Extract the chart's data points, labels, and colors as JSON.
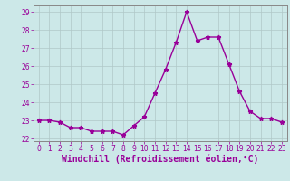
{
  "x": [
    0,
    1,
    2,
    3,
    4,
    5,
    6,
    7,
    8,
    9,
    10,
    11,
    12,
    13,
    14,
    15,
    16,
    17,
    18,
    19,
    20,
    21,
    22,
    23
  ],
  "y": [
    23.0,
    23.0,
    22.9,
    22.6,
    22.6,
    22.4,
    22.4,
    22.4,
    22.2,
    22.7,
    23.2,
    24.5,
    25.8,
    27.3,
    29.0,
    27.4,
    27.6,
    27.6,
    26.1,
    24.6,
    23.5,
    23.1,
    23.1,
    22.9
  ],
  "line_color": "#990099",
  "marker": "*",
  "marker_size": 3.5,
  "xlabel": "Windchill (Refroidissement éolien,°C)",
  "ylim": [
    21.85,
    29.35
  ],
  "yticks": [
    22,
    23,
    24,
    25,
    26,
    27,
    28,
    29
  ],
  "xticks": [
    0,
    1,
    2,
    3,
    4,
    5,
    6,
    7,
    8,
    9,
    10,
    11,
    12,
    13,
    14,
    15,
    16,
    17,
    18,
    19,
    20,
    21,
    22,
    23
  ],
  "bg_color": "#cce8e8",
  "grid_color": "#b0c8c8",
  "line_width": 1.0,
  "tick_fontsize": 5.5,
  "xlabel_fontsize": 7.0
}
